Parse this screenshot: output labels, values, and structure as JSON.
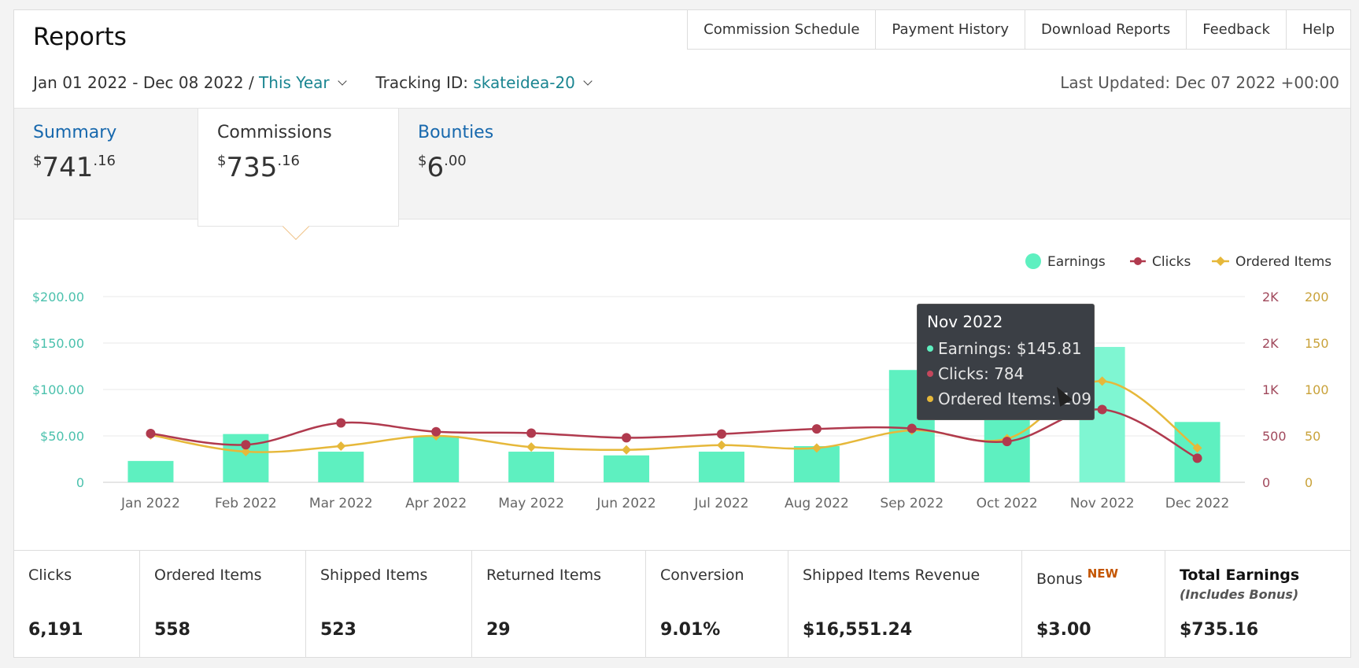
{
  "header": {
    "title": "Reports",
    "nav": [
      "Commission Schedule",
      "Payment History",
      "Download Reports",
      "Feedback",
      "Help"
    ],
    "date_range": "Jan 01 2022 - Dec 08 2022 /",
    "range_preset": "This Year",
    "tracking_label": "Tracking ID:",
    "tracking_id": "skateidea-20",
    "last_updated": "Last Updated: Dec 07 2022 +00:00"
  },
  "tabs": [
    {
      "label": "Summary",
      "currency": "$",
      "whole": "741",
      "cents": ".16"
    },
    {
      "label": "Commissions",
      "currency": "$",
      "whole": "735",
      "cents": ".16"
    },
    {
      "label": "Bounties",
      "currency": "$",
      "whole": "6",
      "cents": ".00"
    }
  ],
  "chart_data": {
    "type": "bar",
    "categories": [
      "Jan 2022",
      "Feb 2022",
      "Mar 2022",
      "Apr 2022",
      "May 2022",
      "Jun 2022",
      "Jul 2022",
      "Aug 2022",
      "Sep 2022",
      "Oct 2022",
      "Nov 2022",
      "Dec 2022"
    ],
    "series": [
      {
        "name": "Earnings",
        "type": "bar",
        "axis": "left",
        "values": [
          23,
          52,
          33,
          50,
          33,
          29,
          33,
          39,
          121,
          89,
          145.81,
          65
        ]
      },
      {
        "name": "Clicks",
        "type": "line",
        "axis": "right1",
        "values": [
          525,
          405,
          640,
          545,
          530,
          480,
          520,
          575,
          580,
          440,
          784,
          260
        ]
      },
      {
        "name": "Ordered Items",
        "type": "line",
        "axis": "right2",
        "values": [
          51,
          33,
          39,
          50,
          38,
          35,
          40,
          37,
          56,
          47,
          109,
          37
        ]
      }
    ],
    "left_ticks": [
      "0",
      "$50.00",
      "$100.00",
      "$150.00",
      "$200.00"
    ],
    "right1_ticks": [
      "0",
      "500",
      "1K",
      "2K",
      "2K"
    ],
    "right2_ticks": [
      "0",
      "50",
      "100",
      "150",
      "200"
    ],
    "ylim_left": [
      0,
      200
    ],
    "ylim_right1": [
      0,
      2000
    ],
    "ylim_right2": [
      0,
      200
    ],
    "legend_placement": "top-right",
    "grid": true,
    "colors": {
      "earnings": "#5ef0c0",
      "earnings_hover": "#7ff6d2",
      "clicks": "#b03a4e",
      "ordered": "#e6b83a",
      "left_axis": "#4bc1ad",
      "right1_axis": "#a0485b",
      "right2_axis": "#c9a23a"
    }
  },
  "tooltip": {
    "title": "Nov 2022",
    "earnings": "Earnings: $145.81",
    "clicks": "Clicks: 784",
    "ordered": "Ordered Items: 109"
  },
  "stats": [
    {
      "label": "Clicks",
      "value": "6,191"
    },
    {
      "label": "Ordered Items",
      "value": "558"
    },
    {
      "label": "Shipped Items",
      "value": "523"
    },
    {
      "label": "Returned Items",
      "value": "29"
    },
    {
      "label": "Conversion",
      "value": "9.01%"
    },
    {
      "label": "Shipped Items Revenue",
      "value": "$16,551.24"
    },
    {
      "label": "Bonus",
      "badge": "NEW",
      "value": "$3.00"
    },
    {
      "label": "Total Earnings",
      "sub": "(Includes Bonus)",
      "value": "$735.16"
    }
  ]
}
